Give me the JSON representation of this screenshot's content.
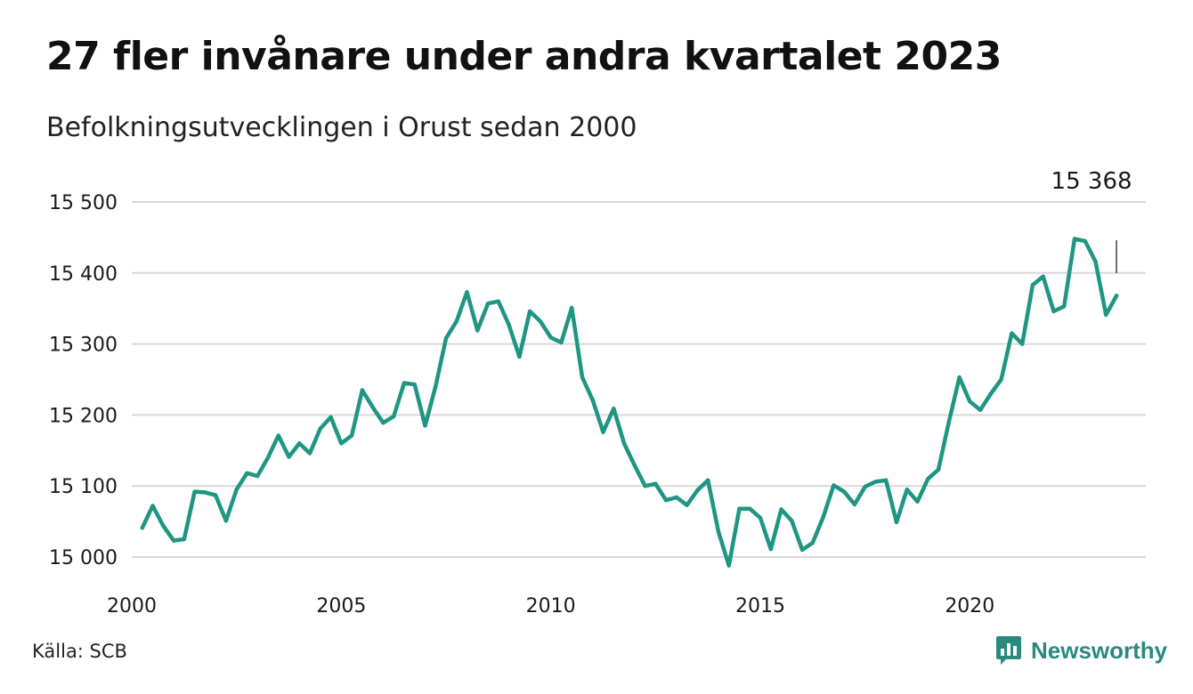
{
  "title": "27 fler invånare under andra kvartalet 2023",
  "subtitle": "Befolkningsutvecklingen i Orust sedan 2000",
  "source": "Källa: SCB",
  "brand": {
    "name": "Newsworthy",
    "icon": "bar-chart-speech-icon"
  },
  "colors": {
    "line": "#1f9683",
    "grid": "#d9d9dd",
    "brand": "#2a8a80"
  },
  "chart_data": {
    "type": "line",
    "title": "27 fler invånare under andra kvartalet 2023",
    "subtitle": "Befolkningsutvecklingen i Orust sedan 2000",
    "xlabel": "",
    "ylabel": "",
    "ylim": [
      15000,
      15500
    ],
    "xlim": [
      2000,
      2024.2
    ],
    "yticks": [
      15000,
      15100,
      15200,
      15300,
      15400,
      15500
    ],
    "ytick_labels": [
      "15 000",
      "15 100",
      "15 200",
      "15 300",
      "15 400",
      "15 500"
    ],
    "xticks": [
      2000,
      2005,
      2010,
      2015,
      2020
    ],
    "xtick_labels": [
      "2000",
      "2005",
      "2010",
      "2015",
      "2020"
    ],
    "grid": true,
    "annotation": {
      "text": "15 368",
      "value": 15368
    },
    "series": [
      {
        "values": [
          [
            2000.25,
            15041
          ],
          [
            2000.5,
            15072
          ],
          [
            2000.75,
            15044
          ],
          [
            2001.0,
            15023
          ],
          [
            2001.25,
            15025
          ],
          [
            2001.5,
            15092
          ],
          [
            2001.75,
            15091
          ],
          [
            2002.0,
            15087
          ],
          [
            2002.25,
            15051
          ],
          [
            2002.5,
            15095
          ],
          [
            2002.75,
            15118
          ],
          [
            2003.0,
            15114
          ],
          [
            2003.25,
            15140
          ],
          [
            2003.5,
            15171
          ],
          [
            2003.75,
            15141
          ],
          [
            2004.0,
            15160
          ],
          [
            2004.25,
            15146
          ],
          [
            2004.5,
            15181
          ],
          [
            2004.75,
            15197
          ],
          [
            2005.0,
            15160
          ],
          [
            2005.25,
            15171
          ],
          [
            2005.5,
            15235
          ],
          [
            2005.75,
            15211
          ],
          [
            2006.0,
            15189
          ],
          [
            2006.25,
            15198
          ],
          [
            2006.5,
            15245
          ],
          [
            2006.75,
            15243
          ],
          [
            2007.0,
            15185
          ],
          [
            2007.25,
            15240
          ],
          [
            2007.5,
            15308
          ],
          [
            2007.75,
            15332
          ],
          [
            2008.0,
            15373
          ],
          [
            2008.25,
            15319
          ],
          [
            2008.5,
            15357
          ],
          [
            2008.75,
            15360
          ],
          [
            2009.0,
            15327
          ],
          [
            2009.25,
            15282
          ],
          [
            2009.5,
            15346
          ],
          [
            2009.75,
            15332
          ],
          [
            2010.0,
            15309
          ],
          [
            2010.25,
            15302
          ],
          [
            2010.5,
            15351
          ],
          [
            2010.75,
            15253
          ],
          [
            2011.0,
            15221
          ],
          [
            2011.25,
            15176
          ],
          [
            2011.5,
            15209
          ],
          [
            2011.75,
            15160
          ],
          [
            2012.0,
            15129
          ],
          [
            2012.25,
            15100
          ],
          [
            2012.5,
            15103
          ],
          [
            2012.75,
            15080
          ],
          [
            2013.0,
            15084
          ],
          [
            2013.25,
            15073
          ],
          [
            2013.5,
            15094
          ],
          [
            2013.75,
            15108
          ],
          [
            2014.0,
            15036
          ],
          [
            2014.25,
            14988
          ],
          [
            2014.5,
            15068
          ],
          [
            2014.75,
            15068
          ],
          [
            2015.0,
            15055
          ],
          [
            2015.25,
            15011
          ],
          [
            2015.5,
            15067
          ],
          [
            2015.75,
            15051
          ],
          [
            2016.0,
            15010
          ],
          [
            2016.25,
            15020
          ],
          [
            2016.5,
            15056
          ],
          [
            2016.75,
            15101
          ],
          [
            2017.0,
            15092
          ],
          [
            2017.25,
            15074
          ],
          [
            2017.5,
            15099
          ],
          [
            2017.75,
            15106
          ],
          [
            2018.0,
            15108
          ],
          [
            2018.25,
            15049
          ],
          [
            2018.5,
            15095
          ],
          [
            2018.75,
            15078
          ],
          [
            2019.0,
            15110
          ],
          [
            2019.25,
            15123
          ],
          [
            2019.5,
            15190
          ],
          [
            2019.75,
            15253
          ],
          [
            2020.0,
            15219
          ],
          [
            2020.25,
            15207
          ],
          [
            2020.5,
            15230
          ],
          [
            2020.75,
            15250
          ],
          [
            2021.0,
            15315
          ],
          [
            2021.25,
            15300
          ],
          [
            2021.5,
            15383
          ],
          [
            2021.75,
            15395
          ],
          [
            2022.0,
            15346
          ],
          [
            2022.25,
            15353
          ],
          [
            2022.5,
            15448
          ],
          [
            2022.75,
            15445
          ],
          [
            2023.0,
            15416
          ],
          [
            2023.25,
            15341
          ],
          [
            2023.5,
            15368
          ]
        ]
      }
    ]
  }
}
